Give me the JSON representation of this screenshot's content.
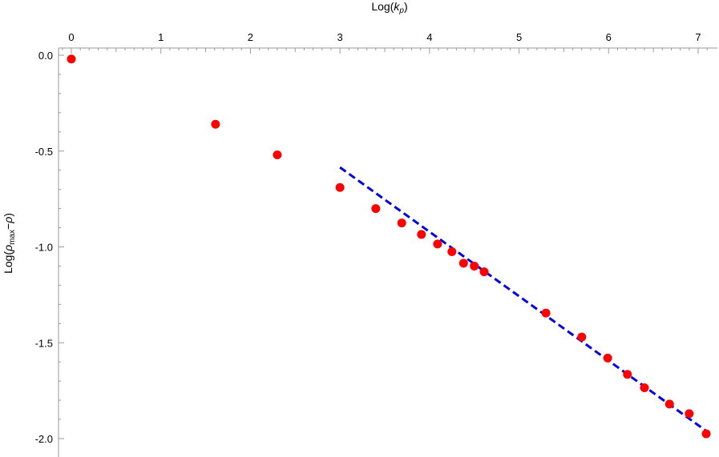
{
  "colors": {
    "points": "#ff0000",
    "fit_line": "#0000e0",
    "axes": "#9a9a9a"
  },
  "chart_data": {
    "type": "scatter",
    "title": "",
    "xlabel": "Log(k_p)",
    "xlabel_main": "Log(",
    "xlabel_var": "k",
    "xlabel_sub": "p",
    "xlabel_close": ")",
    "xlabel_position": "top",
    "ylabel": "Log(ρ_max−ρ)",
    "ylabel_main": "Log(",
    "ylabel_var": "ρ",
    "ylabel_sub": "max",
    "ylabel_mid": "−",
    "ylabel_var2": "ρ",
    "ylabel_close": ")",
    "xlim": [
      -0.1,
      7.15
    ],
    "ylim": [
      -2.08,
      0.04
    ],
    "x_ticks": [
      "0",
      "1",
      "2",
      "3",
      "4",
      "5",
      "6",
      "7"
    ],
    "y_ticks": [
      "0.0",
      "-0.5",
      "-1.0",
      "-1.5",
      "-2.0"
    ],
    "grid": false,
    "series": [
      {
        "type": "scatter",
        "color": "#ff0000",
        "points": [
          {
            "x": 0.0,
            "y": -0.02
          },
          {
            "x": 1.61,
            "y": -0.36
          },
          {
            "x": 2.3,
            "y": -0.52
          },
          {
            "x": 3.0,
            "y": -0.69
          },
          {
            "x": 3.4,
            "y": -0.8
          },
          {
            "x": 3.69,
            "y": -0.875
          },
          {
            "x": 3.91,
            "y": -0.935
          },
          {
            "x": 4.09,
            "y": -0.985
          },
          {
            "x": 4.25,
            "y": -1.025
          },
          {
            "x": 4.38,
            "y": -1.085
          },
          {
            "x": 4.5,
            "y": -1.1
          },
          {
            "x": 4.61,
            "y": -1.13
          },
          {
            "x": 5.3,
            "y": -1.345
          },
          {
            "x": 5.7,
            "y": -1.47
          },
          {
            "x": 5.99,
            "y": -1.58
          },
          {
            "x": 6.21,
            "y": -1.665
          },
          {
            "x": 6.4,
            "y": -1.735
          },
          {
            "x": 6.68,
            "y": -1.82
          },
          {
            "x": 6.9,
            "y": -1.87
          },
          {
            "x": 7.09,
            "y": -1.975
          }
        ]
      },
      {
        "type": "line",
        "style": "dashed",
        "color": "#0000e0",
        "points": [
          {
            "x": 3.0,
            "y": -0.585
          },
          {
            "x": 7.09,
            "y": -1.96
          }
        ]
      }
    ]
  }
}
